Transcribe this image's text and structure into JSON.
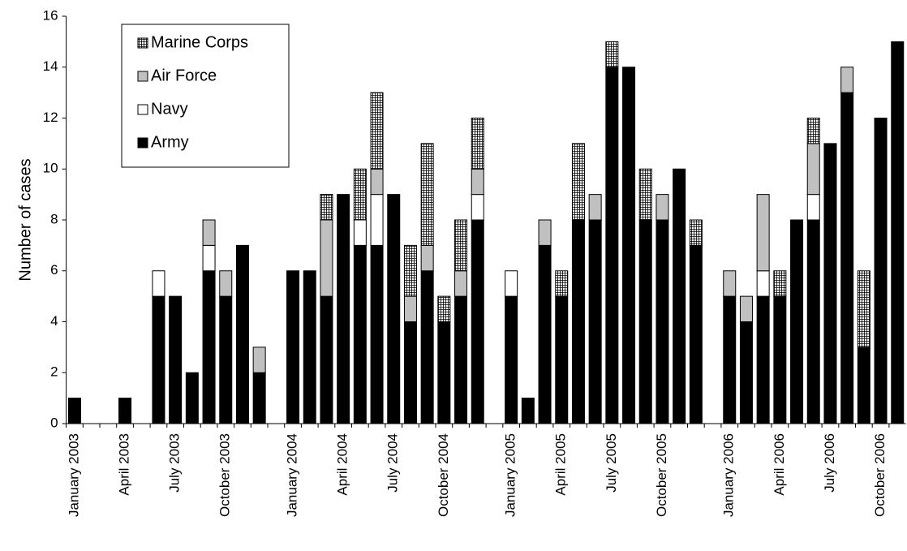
{
  "chart_data": {
    "type": "stacked_bar",
    "y_label": "Number of cases",
    "categories": [
      "January 2003",
      null,
      null,
      "April 2003",
      null,
      null,
      "July 2003",
      null,
      null,
      "October 2003",
      null,
      null,
      null,
      "January 2004",
      null,
      null,
      "April 2004",
      null,
      null,
      "July 2004",
      null,
      null,
      "October 2004",
      null,
      null,
      null,
      "January 2005",
      null,
      null,
      "April 2005",
      null,
      null,
      "July 2005",
      null,
      null,
      "October 2005",
      null,
      null,
      null,
      "January 2006",
      null,
      null,
      "April 2006",
      null,
      null,
      "July 2006",
      null,
      null,
      "October 2006",
      null
    ],
    "series": [
      {
        "name": "Army",
        "color": "#000000",
        "values": [
          1,
          0,
          0,
          1,
          0,
          5,
          5,
          2,
          6,
          5,
          7,
          2,
          null,
          6,
          6,
          5,
          9,
          7,
          7,
          9,
          4,
          6,
          4,
          5,
          8,
          null,
          5,
          1,
          7,
          5,
          8,
          8,
          14,
          14,
          8,
          8,
          10,
          7,
          null,
          5,
          4,
          5,
          5,
          8,
          8,
          11,
          13,
          3,
          12,
          15
        ]
      },
      {
        "name": "Navy",
        "color": "#ffffff",
        "values": [
          0,
          0,
          0,
          0,
          0,
          1,
          0,
          0,
          1,
          0,
          0,
          0,
          null,
          0,
          0,
          0,
          0,
          1,
          2,
          0,
          0,
          0,
          0,
          0,
          1,
          null,
          1,
          0,
          0,
          0,
          0,
          0,
          0,
          0,
          0,
          0,
          0,
          0,
          null,
          0,
          0,
          1,
          0,
          0,
          1,
          0,
          0,
          0,
          0,
          0
        ]
      },
      {
        "name": "Air Force",
        "color": "#c0c0c0",
        "values": [
          0,
          0,
          0,
          0,
          0,
          0,
          0,
          0,
          1,
          1,
          0,
          1,
          null,
          0,
          0,
          3,
          0,
          0,
          1,
          0,
          1,
          1,
          0,
          1,
          1,
          null,
          0,
          0,
          1,
          0,
          0,
          1,
          0,
          0,
          0,
          1,
          0,
          0,
          null,
          1,
          1,
          3,
          0,
          0,
          2,
          0,
          1,
          0,
          0,
          0
        ]
      },
      {
        "name": "Marine Corps",
        "color": "#000000",
        "pattern": "grid",
        "values": [
          0,
          0,
          0,
          0,
          0,
          0,
          0,
          0,
          0,
          0,
          0,
          0,
          null,
          0,
          0,
          1,
          0,
          2,
          3,
          0,
          2,
          4,
          1,
          2,
          2,
          null,
          0,
          0,
          0,
          1,
          3,
          0,
          1,
          0,
          2,
          0,
          0,
          1,
          null,
          0,
          0,
          0,
          1,
          0,
          1,
          0,
          0,
          3,
          0,
          0
        ]
      }
    ],
    "ylim": [
      0,
      16
    ],
    "yticks": [
      0,
      2,
      4,
      6,
      8,
      10,
      12,
      14,
      16
    ],
    "grid": false
  }
}
